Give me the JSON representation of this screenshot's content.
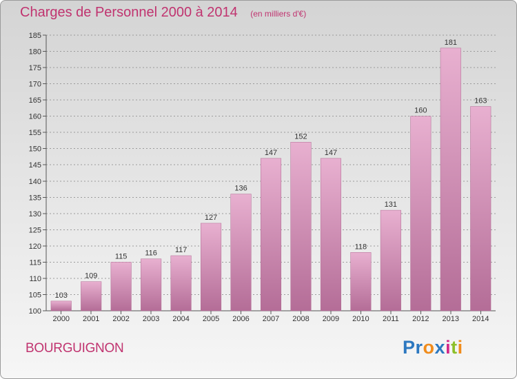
{
  "header": {
    "title": "Charges de Personnel 2000 à 2014",
    "subtitle": "(en milliers d'€)"
  },
  "footer": {
    "commune": "BOURGUIGNON",
    "logo_text": "Proxiti",
    "logo_letters": [
      {
        "char": "P",
        "color": "#2c78c0"
      },
      {
        "char": "r",
        "color": "#2c78c0"
      },
      {
        "char": "o",
        "color": "#f08c1c"
      },
      {
        "char": "x",
        "color": "#2c78c0"
      },
      {
        "char": "i",
        "color": "#d2288a"
      },
      {
        "char": "t",
        "color": "#8cbf2a"
      },
      {
        "char": "i",
        "color": "#f08c1c"
      }
    ]
  },
  "colors": {
    "title": "#c0336f",
    "bar_light": "#e8b0d0",
    "bar_dark": "#b46d97",
    "grid": "#9a9a9a",
    "tick_label": "#333333"
  },
  "chart_data": {
    "type": "bar",
    "title": "Charges de Personnel 2000 à 2014",
    "subtitle": "(en milliers d'€)",
    "categories": [
      "2000",
      "2001",
      "2002",
      "2003",
      "2004",
      "2005",
      "2006",
      "2007",
      "2008",
      "2009",
      "2010",
      "2011",
      "2012",
      "2013",
      "2014"
    ],
    "values": [
      103,
      109,
      115,
      116,
      117,
      127,
      136,
      147,
      152,
      147,
      118,
      131,
      160,
      181,
      163
    ],
    "ylim": [
      100,
      185
    ],
    "yticks": [
      100,
      105,
      110,
      115,
      120,
      125,
      130,
      135,
      140,
      145,
      150,
      155,
      160,
      165,
      170,
      175,
      180,
      185
    ],
    "grid": true,
    "data_labels": true
  }
}
